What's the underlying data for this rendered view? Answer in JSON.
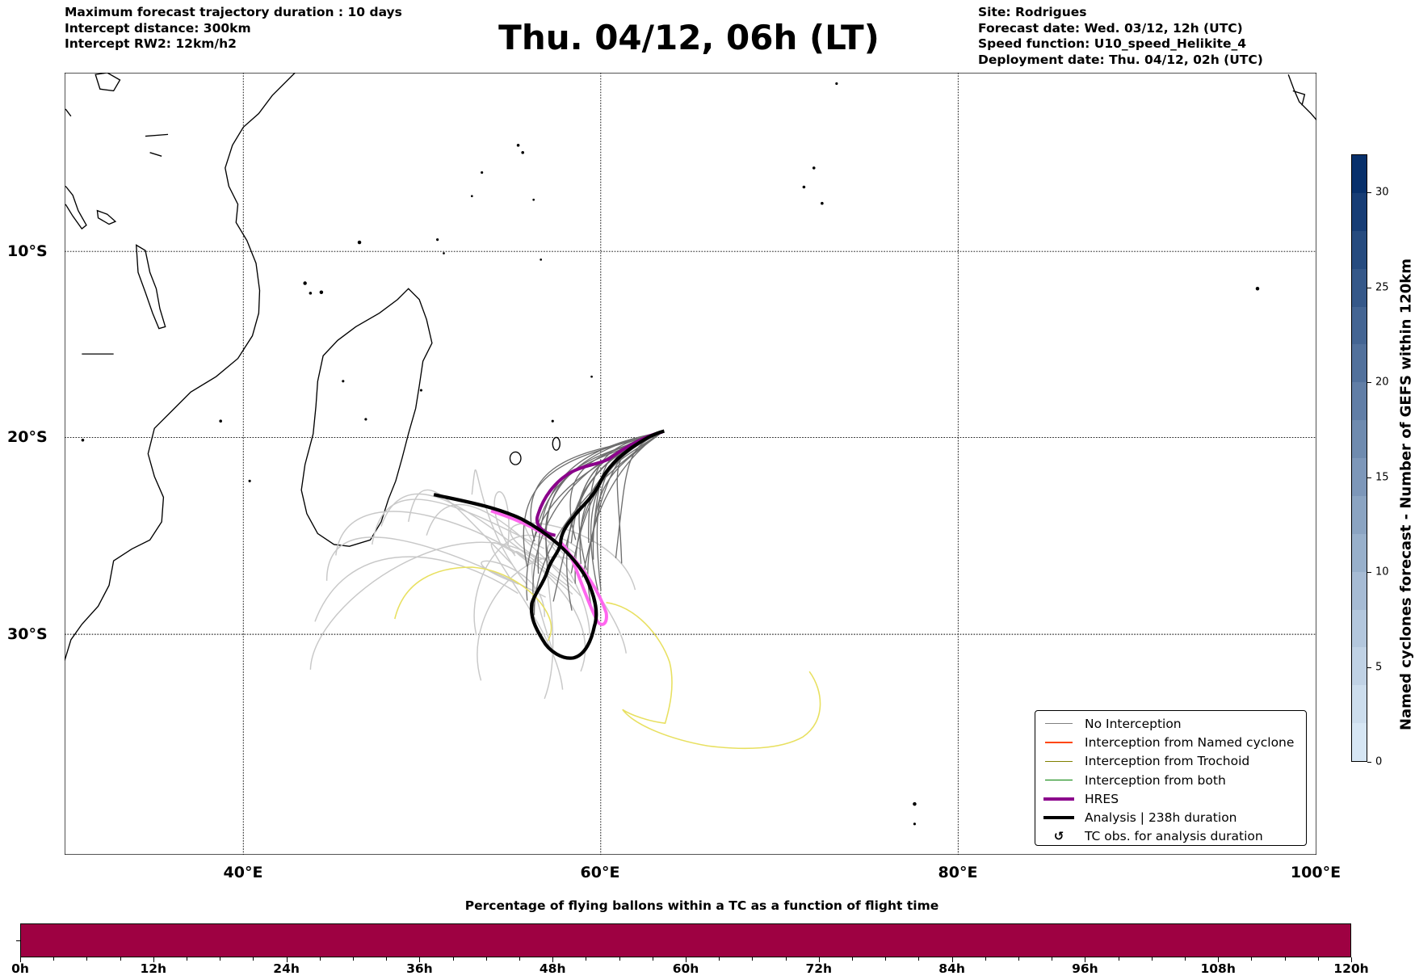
{
  "header": {
    "left": [
      "Maximum forecast trajectory duration : 10 days",
      "Intercept distance: 300km",
      "Intercept RW2: 12km/h2"
    ],
    "title": "Thu. 04/12, 06h (LT)",
    "right": [
      "Site: Rodrigues",
      "Forecast date: Wed. 03/12, 12h (UTC)",
      "Speed function: U10_speed_Helikite_4",
      "Deployment date: Thu. 04/12, 02h (UTC)"
    ]
  },
  "chart_data": [
    {
      "type": "line",
      "title": "Thu. 04/12, 06h (LT)",
      "projection": "mercator",
      "xlim": [
        30,
        100
      ],
      "ylim": [
        -40,
        0
      ],
      "grid": true,
      "xticks": [
        {
          "value": 40,
          "label": "40°E"
        },
        {
          "value": 60,
          "label": "60°E"
        },
        {
          "value": 80,
          "label": "80°E"
        },
        {
          "value": 100,
          "label": "100°E"
        }
      ],
      "yticks": [
        {
          "value": -10,
          "label": "10°S"
        },
        {
          "value": -20,
          "label": "20°S"
        },
        {
          "value": -30,
          "label": "30°S"
        }
      ],
      "legend_position": "bottom-right",
      "legend": [
        {
          "label": "No Interception",
          "color": "#808080",
          "kind": "thin"
        },
        {
          "label": "Interception from Named cyclone",
          "color": "#ff4500",
          "kind": "thin"
        },
        {
          "label": "Interception from Trochoid",
          "color": "#808000",
          "kind": "thin"
        },
        {
          "label": "Interception from both",
          "color": "#008000",
          "kind": "thin"
        },
        {
          "label": "HRES",
          "color": "#8b008b",
          "kind": "thick"
        },
        {
          "label": "Analysis | 238h duration",
          "color": "#000000",
          "kind": "thick"
        },
        {
          "label": "TC obs. for analysis duration",
          "color": "#000000",
          "kind": "marker",
          "symbol": "↺"
        }
      ],
      "series_colors": {
        "ensemble_dark": "#6e6e6e",
        "ensemble_light": "#c8c8c8",
        "hres": "#8b008b",
        "hres_alt": "#ff66ee",
        "analysis": "#000000",
        "yellow": "#e8e060"
      }
    },
    {
      "type": "heatmap",
      "title": "Named cyclones forecast - Number of GEFS within 120km",
      "orientation": "vertical-colorbar",
      "range": [
        0,
        32
      ],
      "step": 2,
      "ticks": [
        0,
        5,
        10,
        15,
        20,
        25,
        30
      ],
      "colormap": "Blues",
      "color_low": "#d6e6f4",
      "color_high": "#08306b"
    },
    {
      "type": "bar",
      "title": "Percentage of flying ballons within a TC as a function of flight time",
      "xlim": [
        0,
        120
      ],
      "ticks": [
        "0h",
        "12h",
        "24h",
        "36h",
        "48h",
        "60h",
        "72h",
        "84h",
        "96h",
        "108h",
        "120h"
      ],
      "minor_step_h": 3,
      "fill_color": "#9e0142"
    }
  ]
}
